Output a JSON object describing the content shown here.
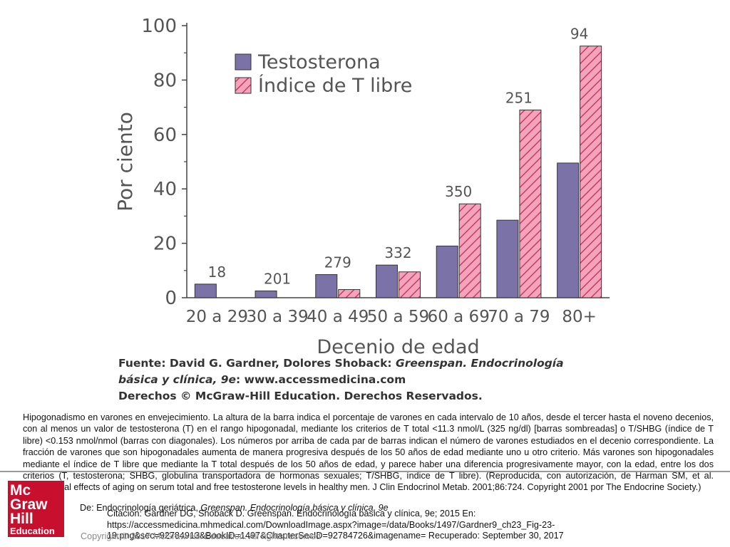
{
  "chart_data": {
    "type": "bar",
    "ylabel": "Por ciento",
    "xlabel": "Decenio de edad",
    "ylim": [
      0,
      100
    ],
    "yticks": [
      0,
      20,
      40,
      60,
      80,
      100
    ],
    "categories": [
      "20 a 29",
      "30 a 39",
      "40 a 49",
      "50 a 59",
      "60 a 69",
      "70 a 79",
      "80+"
    ],
    "series": [
      {
        "name": "Testosterona",
        "color": "#7b72a8",
        "pattern": "solid",
        "values": [
          5,
          2.5,
          8.5,
          12,
          19,
          28.5,
          49.5
        ]
      },
      {
        "name": "Índice de T libre",
        "color": "#f5a3bd",
        "pattern": "diagonal-hatch",
        "values": [
          0,
          0,
          3,
          9.5,
          34.5,
          69,
          92.5
        ]
      }
    ],
    "n_labels": [
      "18",
      "201",
      "279",
      "332",
      "350",
      "251",
      "94"
    ],
    "legend": "top-left"
  },
  "source": {
    "line1_prefix": "Fuente: David G. Gardner, Dolores Shoback: ",
    "line1_italic": "Greenspan. Endocrinología",
    "line2_italic": "básica y clínica, 9e",
    "line2_suffix": ": www.accessmedicina.com",
    "line3": "Derechos © McGraw-Hill Education. Derechos Reservados."
  },
  "caption": "Hipogonadismo en varones en envejecimiento. La altura de la barra indica el porcentaje de varones en cada intervalo de 10 años, desde el tercer hasta el noveno decenios, con al menos un valor de testosterona (T) en el rango hipogonadal, mediante los criterios de T total <11.3 nmol/L (325 ng/dl) [barras sombreadas] o T/SHBG (índice de T libre) <0.153 nmol/nmol (barras con diagonales). Los números por arriba de cada par de barras indican el número de varones estudiados en el decenio correspondiente. La fracción de varones que son hipogonadales aumenta de manera progresiva después de los 50 años de edad mediante uno u otro criterio. Más varones son hipogonadales mediante el índice de T libre que mediante la T total después de los 50 años de edad, y parece haber una diferencia progresivamente mayor, con la edad, entre los dos criterios (T, testosterona; SHBG, globulina transportadora de hormonas sexuales; T/SHBG, índice de T libre). (Reproducida, con autorización, de Harman SM, et al. Longitudinal effects of aging on serum total and free testosterone levels in healthy men. J Clin Endocrinol Metab. 2001;86:724. Copyright 2001 por The Endocrine Society.)",
  "citation": {
    "line1_prefix": "De: Endocrinología geriátrica, ",
    "line1_italic": "Greenspan. Endocrinología básica y clínica, 9e",
    "line2": "Citación: Gardner DG, Shoback D. Greenspan. Endocrinología básica y clínica, 9e; 2015 En: https://accessmedicina.mhmedical.com/DownloadImage.aspx?image=/data/Books/1497/Gardner9_ch23_Fig-23-19.png&sec=92784913&BookID=1497&ChapterSecID=92784726&imagename= Recuperado: September 30, 2017"
  },
  "copyright": "Copyright © 2017 McGraw-Hill Education. All rights reserved",
  "logo": {
    "line1": "Mc",
    "line2": "Graw",
    "line3": "Hill",
    "line4": "Education",
    "color": "#c8102e"
  }
}
